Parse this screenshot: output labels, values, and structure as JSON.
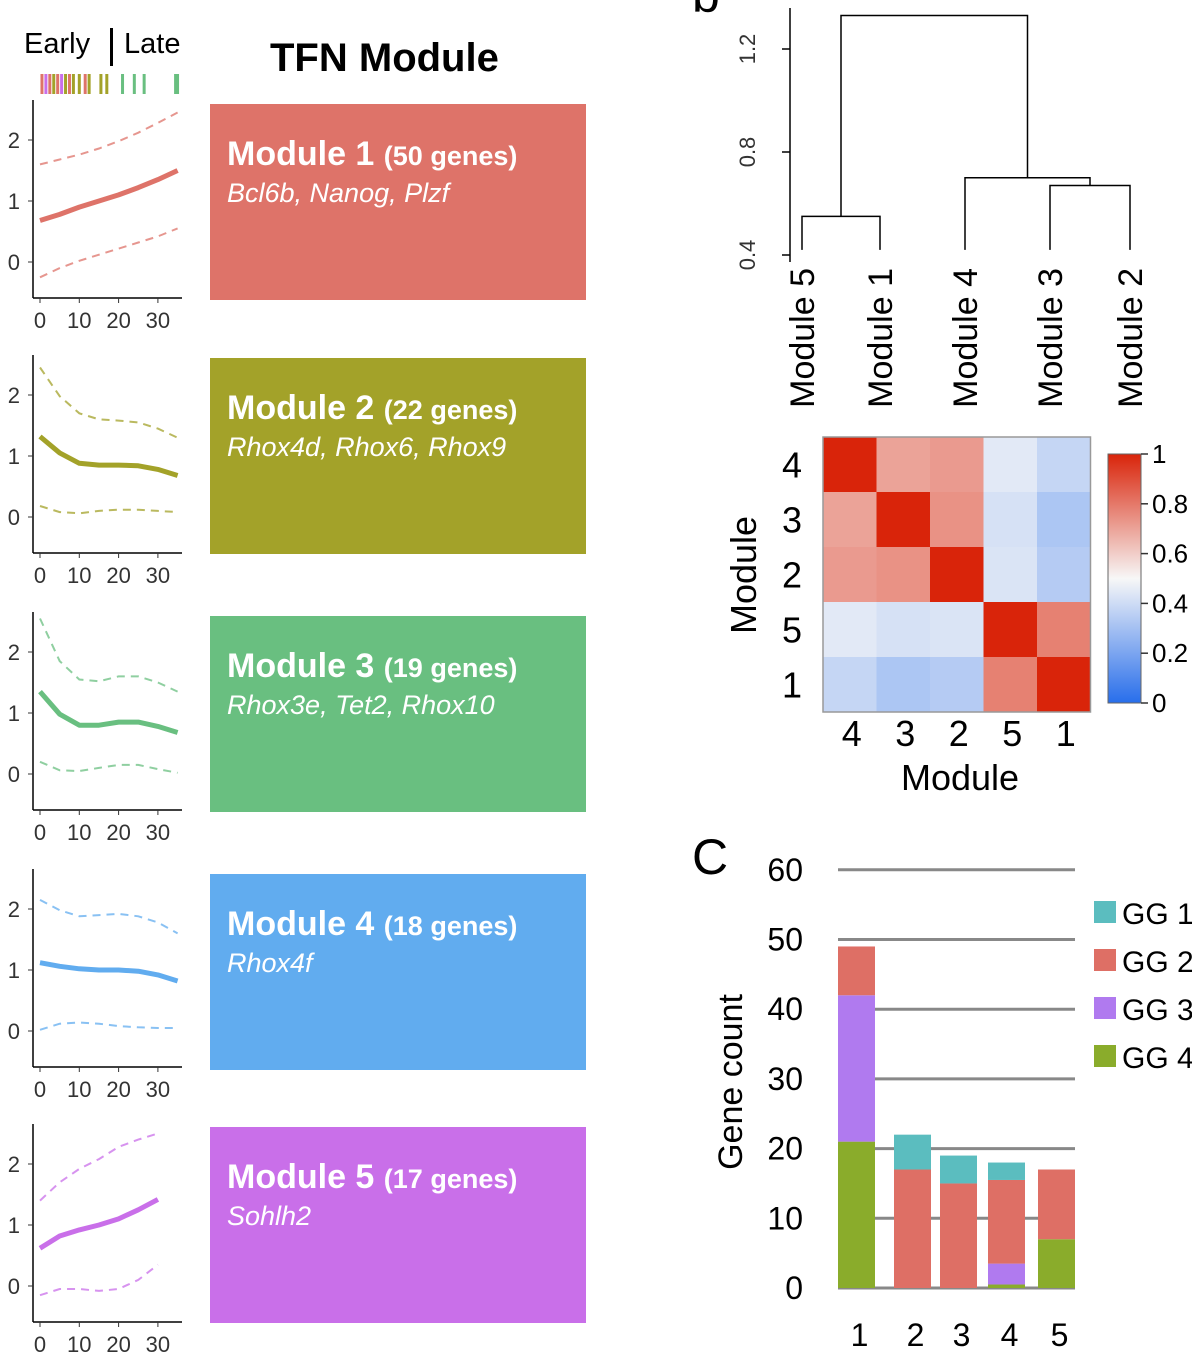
{
  "header": {
    "early_label": "Early",
    "late_label": "Late",
    "title": "TFN Module"
  },
  "panel_b_label": "b",
  "panel_c_label": "C",
  "modules": [
    {
      "name": "Module 1",
      "count_label": "(50 genes)",
      "genes": "Bcl6b, Nanog, Plzf",
      "color": "#de7369"
    },
    {
      "name": "Module 2",
      "count_label": "(22 genes)",
      "genes": "Rhox4d, Rhox6, Rhox9",
      "color": "#a3a229"
    },
    {
      "name": "Module 3",
      "count_label": "(19 genes)",
      "genes": "Rhox3e, Tet2, Rhox10",
      "color": "#69bf80"
    },
    {
      "name": "Module 4",
      "count_label": "(18 genes)",
      "genes": "Rhox4f",
      "color": "#61acef"
    },
    {
      "name": "Module 5",
      "count_label": "(17 genes)",
      "genes": "Sohlh2",
      "color": "#c96fe9"
    }
  ],
  "chart_data": [
    {
      "type": "line",
      "id": "trajectories",
      "x_ticks": [
        0,
        10,
        20,
        30
      ],
      "y_ticks": [
        0,
        1,
        2
      ],
      "xlim": [
        -1,
        36
      ],
      "ylim": [
        -0.3,
        2.6
      ],
      "rug": [
        {
          "x": 0.5,
          "color": "#de7369"
        },
        {
          "x": 1.5,
          "color": "#c96fe9"
        },
        {
          "x": 2.5,
          "color": "#de7369"
        },
        {
          "x": 3.5,
          "color": "#a3a229"
        },
        {
          "x": 4.5,
          "color": "#de7369"
        },
        {
          "x": 5.5,
          "color": "#c96fe9"
        },
        {
          "x": 6.5,
          "color": "#a3a229"
        },
        {
          "x": 7.5,
          "color": "#de7369"
        },
        {
          "x": 8.5,
          "color": "#a3a229"
        },
        {
          "x": 10,
          "color": "#a3a229"
        },
        {
          "x": 11.5,
          "color": "#de7369"
        },
        {
          "x": 12.5,
          "color": "#a3a229"
        },
        {
          "x": 15.5,
          "color": "#a3a229"
        },
        {
          "x": 17,
          "color": "#a3a229"
        },
        {
          "x": 21,
          "color": "#69bf80"
        },
        {
          "x": 24,
          "color": "#69bf80"
        },
        {
          "x": 26.5,
          "color": "#69bf80"
        },
        {
          "x": 34.5,
          "color": "#69bf80"
        },
        {
          "x": 35,
          "color": "#69bf80"
        }
      ],
      "panels": [
        {
          "series": "Module 1",
          "x": [
            0,
            5,
            10,
            15,
            20,
            25,
            30,
            35
          ],
          "mean": [
            0.68,
            0.78,
            0.9,
            1.0,
            1.1,
            1.22,
            1.35,
            1.5
          ],
          "upper": [
            1.6,
            1.68,
            1.76,
            1.86,
            1.98,
            2.12,
            2.28,
            2.45
          ],
          "lower": [
            -0.25,
            -0.1,
            0.02,
            0.12,
            0.22,
            0.32,
            0.42,
            0.55
          ]
        },
        {
          "series": "Module 2",
          "x": [
            0,
            5,
            10,
            15,
            20,
            25,
            30,
            35
          ],
          "mean": [
            1.32,
            1.05,
            0.88,
            0.85,
            0.85,
            0.84,
            0.78,
            0.68
          ],
          "upper": [
            2.45,
            1.98,
            1.7,
            1.6,
            1.58,
            1.55,
            1.45,
            1.3
          ],
          "lower": [
            0.18,
            0.08,
            0.06,
            0.1,
            0.12,
            0.12,
            0.1,
            0.08
          ]
        },
        {
          "series": "Module 3",
          "x": [
            0,
            5,
            10,
            15,
            20,
            25,
            30,
            35
          ],
          "mean": [
            1.35,
            0.98,
            0.8,
            0.8,
            0.85,
            0.85,
            0.78,
            0.68
          ],
          "upper": [
            2.55,
            1.85,
            1.55,
            1.52,
            1.6,
            1.6,
            1.5,
            1.35
          ],
          "lower": [
            0.2,
            0.06,
            0.05,
            0.1,
            0.15,
            0.15,
            0.08,
            0.02
          ]
        },
        {
          "series": "Module 4",
          "x": [
            0,
            5,
            10,
            15,
            20,
            25,
            30,
            35
          ],
          "mean": [
            1.12,
            1.06,
            1.02,
            1.0,
            1.0,
            0.98,
            0.92,
            0.82
          ],
          "upper": [
            2.15,
            1.98,
            1.88,
            1.9,
            1.92,
            1.88,
            1.78,
            1.6
          ],
          "lower": [
            0.02,
            0.12,
            0.14,
            0.12,
            0.08,
            0.06,
            0.05,
            0.05
          ]
        },
        {
          "series": "Module 5",
          "x": [
            0,
            5,
            10,
            15,
            20,
            25,
            30
          ],
          "mean": [
            0.62,
            0.82,
            0.92,
            1.0,
            1.1,
            1.25,
            1.42
          ],
          "upper": [
            1.4,
            1.7,
            1.92,
            2.08,
            2.28,
            2.4,
            2.5
          ],
          "lower": [
            -0.15,
            -0.05,
            -0.05,
            -0.08,
            -0.05,
            0.1,
            0.35
          ]
        }
      ]
    },
    {
      "type": "dendrogram",
      "id": "module-dendrogram",
      "y_ticks": [
        0.4,
        0.8,
        1.2
      ],
      "ylim": [
        0.4,
        1.35
      ],
      "leaves": [
        "Module 5",
        "Module 1",
        "Module 4",
        "Module 3",
        "Module 2"
      ],
      "merges": [
        {
          "left": 0,
          "right": 1,
          "height": 0.55
        },
        {
          "left": 3,
          "right": 4,
          "height": 0.67
        },
        {
          "left": 2,
          "right": "m1",
          "height": 0.7
        },
        {
          "left": "m0",
          "right": "m2",
          "height": 1.33
        }
      ]
    },
    {
      "type": "heatmap",
      "id": "module-correlation",
      "xlabel": "Module",
      "ylabel": "Module",
      "row_labels": [
        "4",
        "3",
        "2",
        "5",
        "1"
      ],
      "col_labels": [
        "4",
        "3",
        "2",
        "5",
        "1"
      ],
      "values": [
        [
          1,
          0.7,
          0.72,
          0.45,
          0.38
        ],
        [
          0.7,
          1,
          0.74,
          0.42,
          0.32
        ],
        [
          0.72,
          0.74,
          1,
          0.43,
          0.34
        ],
        [
          0.45,
          0.42,
          0.43,
          1,
          0.78
        ],
        [
          0.38,
          0.32,
          0.34,
          0.78,
          1
        ]
      ],
      "colorbar_ticks": [
        "1",
        "0.8",
        "0.6",
        "0.4",
        "0.2",
        "0"
      ],
      "vmin": 0,
      "vmax": 1
    },
    {
      "type": "bar",
      "id": "gene-count",
      "stacked": true,
      "categories": [
        "1",
        "2",
        "3",
        "4",
        "5"
      ],
      "ylabel": "Gene count",
      "ylim": [
        0,
        60
      ],
      "y_ticks": [
        0,
        10,
        20,
        30,
        40,
        50,
        60
      ],
      "grid": true,
      "legend_position": "right",
      "series": [
        {
          "name": "GG 4",
          "color": "#8aac2b",
          "values": [
            21,
            0,
            0,
            0.5,
            7
          ]
        },
        {
          "name": "GG 3",
          "color": "#b07aef",
          "values": [
            21,
            0,
            0,
            3,
            0
          ]
        },
        {
          "name": "GG 2",
          "color": "#de6f65",
          "values": [
            7,
            17,
            15,
            12,
            10
          ]
        },
        {
          "name": "GG 1",
          "color": "#5bbdbf",
          "values": [
            0,
            5,
            4,
            2.5,
            0
          ]
        }
      ],
      "legend_order": [
        "GG 1",
        "GG 2",
        "GG 3",
        "GG 4"
      ]
    }
  ]
}
